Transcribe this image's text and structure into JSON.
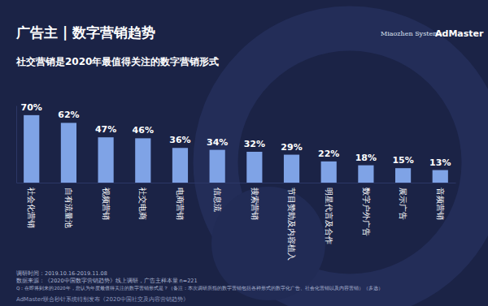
{
  "chart_data": {
    "type": "bar",
    "title": "广告主 | 数字营销趋势",
    "subtitle": "社交营销是2020年最值得关注的数字营销形式",
    "categories": [
      "社会化营销",
      "自有流量池",
      "视频营销",
      "社交电商",
      "电商营销",
      "信息流",
      "搜索营销",
      "节目赞助及内容植入",
      "明星代言及合作",
      "数字户外广告",
      "展示广告",
      "音频营销"
    ],
    "values": [
      70,
      62,
      47,
      46,
      36,
      34,
      32,
      29,
      22,
      18,
      15,
      13
    ],
    "value_labels": [
      "70%",
      "62%",
      "47%",
      "46%",
      "36%",
      "34%",
      "32%",
      "29%",
      "22%",
      "18%",
      "15%",
      "13%"
    ],
    "data_labels": true,
    "color": "#7fa3e6",
    "ylim": [
      0,
      80
    ],
    "tick_labels": "x",
    "grid": false,
    "annotations": [
      "Miaozhen Systems",
      "AdMaster",
      "调研时间：2019.10.16-2019.11.08",
      "数据来源：《2020中国数字营销趋势》线上调研，广告主样本量 n=221",
      "Q：在即将到来的2020年，您认为年度最值得关注的数字营销形式是？（备注：本次调研所指的数字营销包括各种形式的数字化广告、社会化营销以及内容营销）（多选）",
      "AdMaster联合秒针系统特别发布《2020中国社交及内容营销趋势》"
    ]
  }
}
